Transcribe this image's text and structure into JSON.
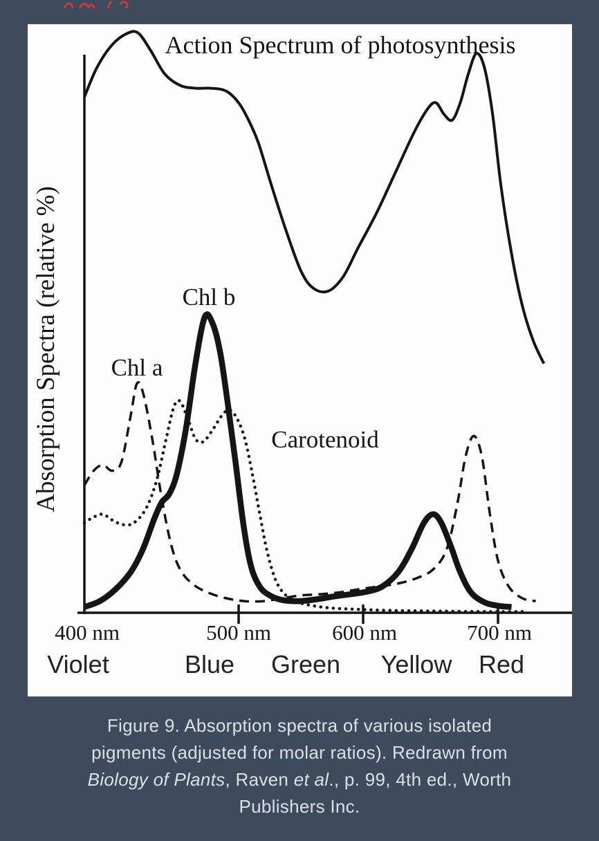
{
  "page": {
    "background": "#3d4b5c"
  },
  "top_marks": {
    "color": "#c73a3a",
    "description": "partially cropped red text at top edge"
  },
  "figure": {
    "caption_color": "#dbe0e6",
    "caption_lines": [
      [
        {
          "text": "Figure 9. Absorption spectra of various isolated",
          "italic": false
        }
      ],
      [
        {
          "text": "pigments (adjusted for molar ratios). Redrawn from",
          "italic": false
        }
      ],
      [
        {
          "text": "Biology of Plants",
          "italic": true
        },
        {
          "text": ", Raven ",
          "italic": false
        },
        {
          "text": "et al",
          "italic": true
        },
        {
          "text": "., p. 99, 4th ed., Worth",
          "italic": false
        }
      ],
      [
        {
          "text": "Publishers Inc.",
          "italic": false
        }
      ]
    ]
  },
  "chart_data": {
    "type": "line",
    "title": "Action Spectrum of photosynthesis",
    "xlabel": "",
    "ylabel": "Absorption Spectra (relative %)",
    "x_unit": "nm",
    "xlim": [
      395,
      760
    ],
    "ylim": [
      0,
      105
    ],
    "grid": false,
    "legend": "inline-annotations",
    "ink": "#151515",
    "x_ticks": [
      {
        "wl": 400,
        "label": "400 nm"
      },
      {
        "wl": 500,
        "label": "500 nm"
      },
      {
        "wl": 600,
        "label": "600 nm"
      },
      {
        "wl": 700,
        "label": "700 nm"
      }
    ],
    "color_bands": [
      {
        "label": "Violet",
        "wl": 396
      },
      {
        "label": "Blue",
        "wl": 481
      },
      {
        "label": "Green",
        "wl": 543
      },
      {
        "label": "Yellow",
        "wl": 640
      },
      {
        "label": "Red",
        "wl": 702
      }
    ],
    "annotations": [
      {
        "text": "Chl a",
        "wl": 434,
        "value": 44
      },
      {
        "text": "Chl b",
        "wl": 478,
        "value": 55
      },
      {
        "text": "Carotenoid",
        "wl": 568,
        "value": 30
      }
    ],
    "series": [
      {
        "name": "Action spectrum of photosynthesis",
        "style": "solid-thin",
        "points": [
          [
            400,
            89
          ],
          [
            408,
            94
          ],
          [
            418,
            98
          ],
          [
            428,
            100
          ],
          [
            435,
            100
          ],
          [
            443,
            97
          ],
          [
            452,
            93
          ],
          [
            462,
            91
          ],
          [
            472,
            90.5
          ],
          [
            482,
            90.5
          ],
          [
            492,
            90
          ],
          [
            500,
            88
          ],
          [
            508,
            85
          ],
          [
            516,
            81
          ],
          [
            526,
            74
          ],
          [
            538,
            66
          ],
          [
            550,
            59
          ],
          [
            560,
            56
          ],
          [
            572,
            55.5
          ],
          [
            584,
            58
          ],
          [
            596,
            63
          ],
          [
            610,
            69
          ],
          [
            624,
            76
          ],
          [
            638,
            83
          ],
          [
            648,
            87
          ],
          [
            654,
            88
          ],
          [
            660,
            86
          ],
          [
            666,
            85
          ],
          [
            672,
            88
          ],
          [
            678,
            93
          ],
          [
            684,
            96.5
          ],
          [
            690,
            94
          ],
          [
            696,
            86
          ],
          [
            702,
            74
          ],
          [
            710,
            62
          ],
          [
            718,
            53
          ],
          [
            726,
            47
          ],
          [
            734,
            43
          ]
        ]
      },
      {
        "name": "Chl a",
        "style": "dashed",
        "points": [
          [
            400,
            22
          ],
          [
            406,
            24.5
          ],
          [
            412,
            25.5
          ],
          [
            418,
            24.5
          ],
          [
            424,
            26
          ],
          [
            430,
            34
          ],
          [
            434,
            39.5
          ],
          [
            438,
            38
          ],
          [
            444,
            30
          ],
          [
            450,
            20
          ],
          [
            456,
            12
          ],
          [
            462,
            7.5
          ],
          [
            470,
            5
          ],
          [
            480,
            3.5
          ],
          [
            492,
            2.5
          ],
          [
            505,
            2
          ],
          [
            520,
            2
          ],
          [
            535,
            2.5
          ],
          [
            550,
            3
          ],
          [
            565,
            3.2
          ],
          [
            580,
            3.5
          ],
          [
            595,
            4
          ],
          [
            610,
            4.5
          ],
          [
            625,
            5
          ],
          [
            640,
            6
          ],
          [
            652,
            7.5
          ],
          [
            662,
            11
          ],
          [
            670,
            19
          ],
          [
            676,
            27
          ],
          [
            682,
            30.5
          ],
          [
            688,
            27
          ],
          [
            694,
            17
          ],
          [
            700,
            9
          ],
          [
            708,
            4.5
          ],
          [
            718,
            2.5
          ],
          [
            728,
            2
          ]
        ]
      },
      {
        "name": "Carotenoid",
        "style": "dotted",
        "points": [
          [
            400,
            15.5
          ],
          [
            406,
            16.5
          ],
          [
            412,
            17
          ],
          [
            418,
            16
          ],
          [
            425,
            15.2
          ],
          [
            432,
            15.5
          ],
          [
            440,
            18
          ],
          [
            447,
            23
          ],
          [
            453,
            30
          ],
          [
            458,
            35.5
          ],
          [
            462,
            36.5
          ],
          [
            467,
            33.5
          ],
          [
            472,
            30
          ],
          [
            477,
            29.5
          ],
          [
            483,
            31.5
          ],
          [
            489,
            34
          ],
          [
            494,
            35
          ],
          [
            499,
            33.5
          ],
          [
            505,
            30
          ],
          [
            511,
            24
          ],
          [
            517,
            17
          ],
          [
            523,
            10.5
          ],
          [
            530,
            5.5
          ],
          [
            538,
            3
          ],
          [
            548,
            1.8
          ],
          [
            560,
            1.2
          ],
          [
            575,
            0.8
          ],
          [
            595,
            0.6
          ],
          [
            620,
            0.4
          ],
          [
            650,
            0.3
          ],
          [
            690,
            0.2
          ],
          [
            720,
            0.2
          ]
        ]
      },
      {
        "name": "Chl b",
        "style": "solid-thick",
        "points": [
          [
            400,
            1
          ],
          [
            410,
            2
          ],
          [
            420,
            4
          ],
          [
            430,
            7
          ],
          [
            438,
            11
          ],
          [
            445,
            16
          ],
          [
            450,
            19
          ],
          [
            455,
            20.5
          ],
          [
            460,
            24
          ],
          [
            466,
            32
          ],
          [
            472,
            43
          ],
          [
            478,
            51
          ],
          [
            483,
            50
          ],
          [
            488,
            45
          ],
          [
            493,
            36
          ],
          [
            498,
            26
          ],
          [
            504,
            15
          ],
          [
            510,
            8
          ],
          [
            517,
            4.5
          ],
          [
            525,
            3
          ],
          [
            535,
            2.2
          ],
          [
            548,
            2
          ],
          [
            562,
            2.3
          ],
          [
            576,
            2.8
          ],
          [
            590,
            3.2
          ],
          [
            602,
            3.6
          ],
          [
            614,
            4.5
          ],
          [
            626,
            7
          ],
          [
            636,
            11
          ],
          [
            645,
            15.5
          ],
          [
            652,
            17
          ],
          [
            658,
            15.5
          ],
          [
            665,
            11.5
          ],
          [
            672,
            7
          ],
          [
            680,
            3.5
          ],
          [
            690,
            1.8
          ],
          [
            700,
            1.2
          ],
          [
            710,
            1
          ]
        ]
      }
    ]
  }
}
